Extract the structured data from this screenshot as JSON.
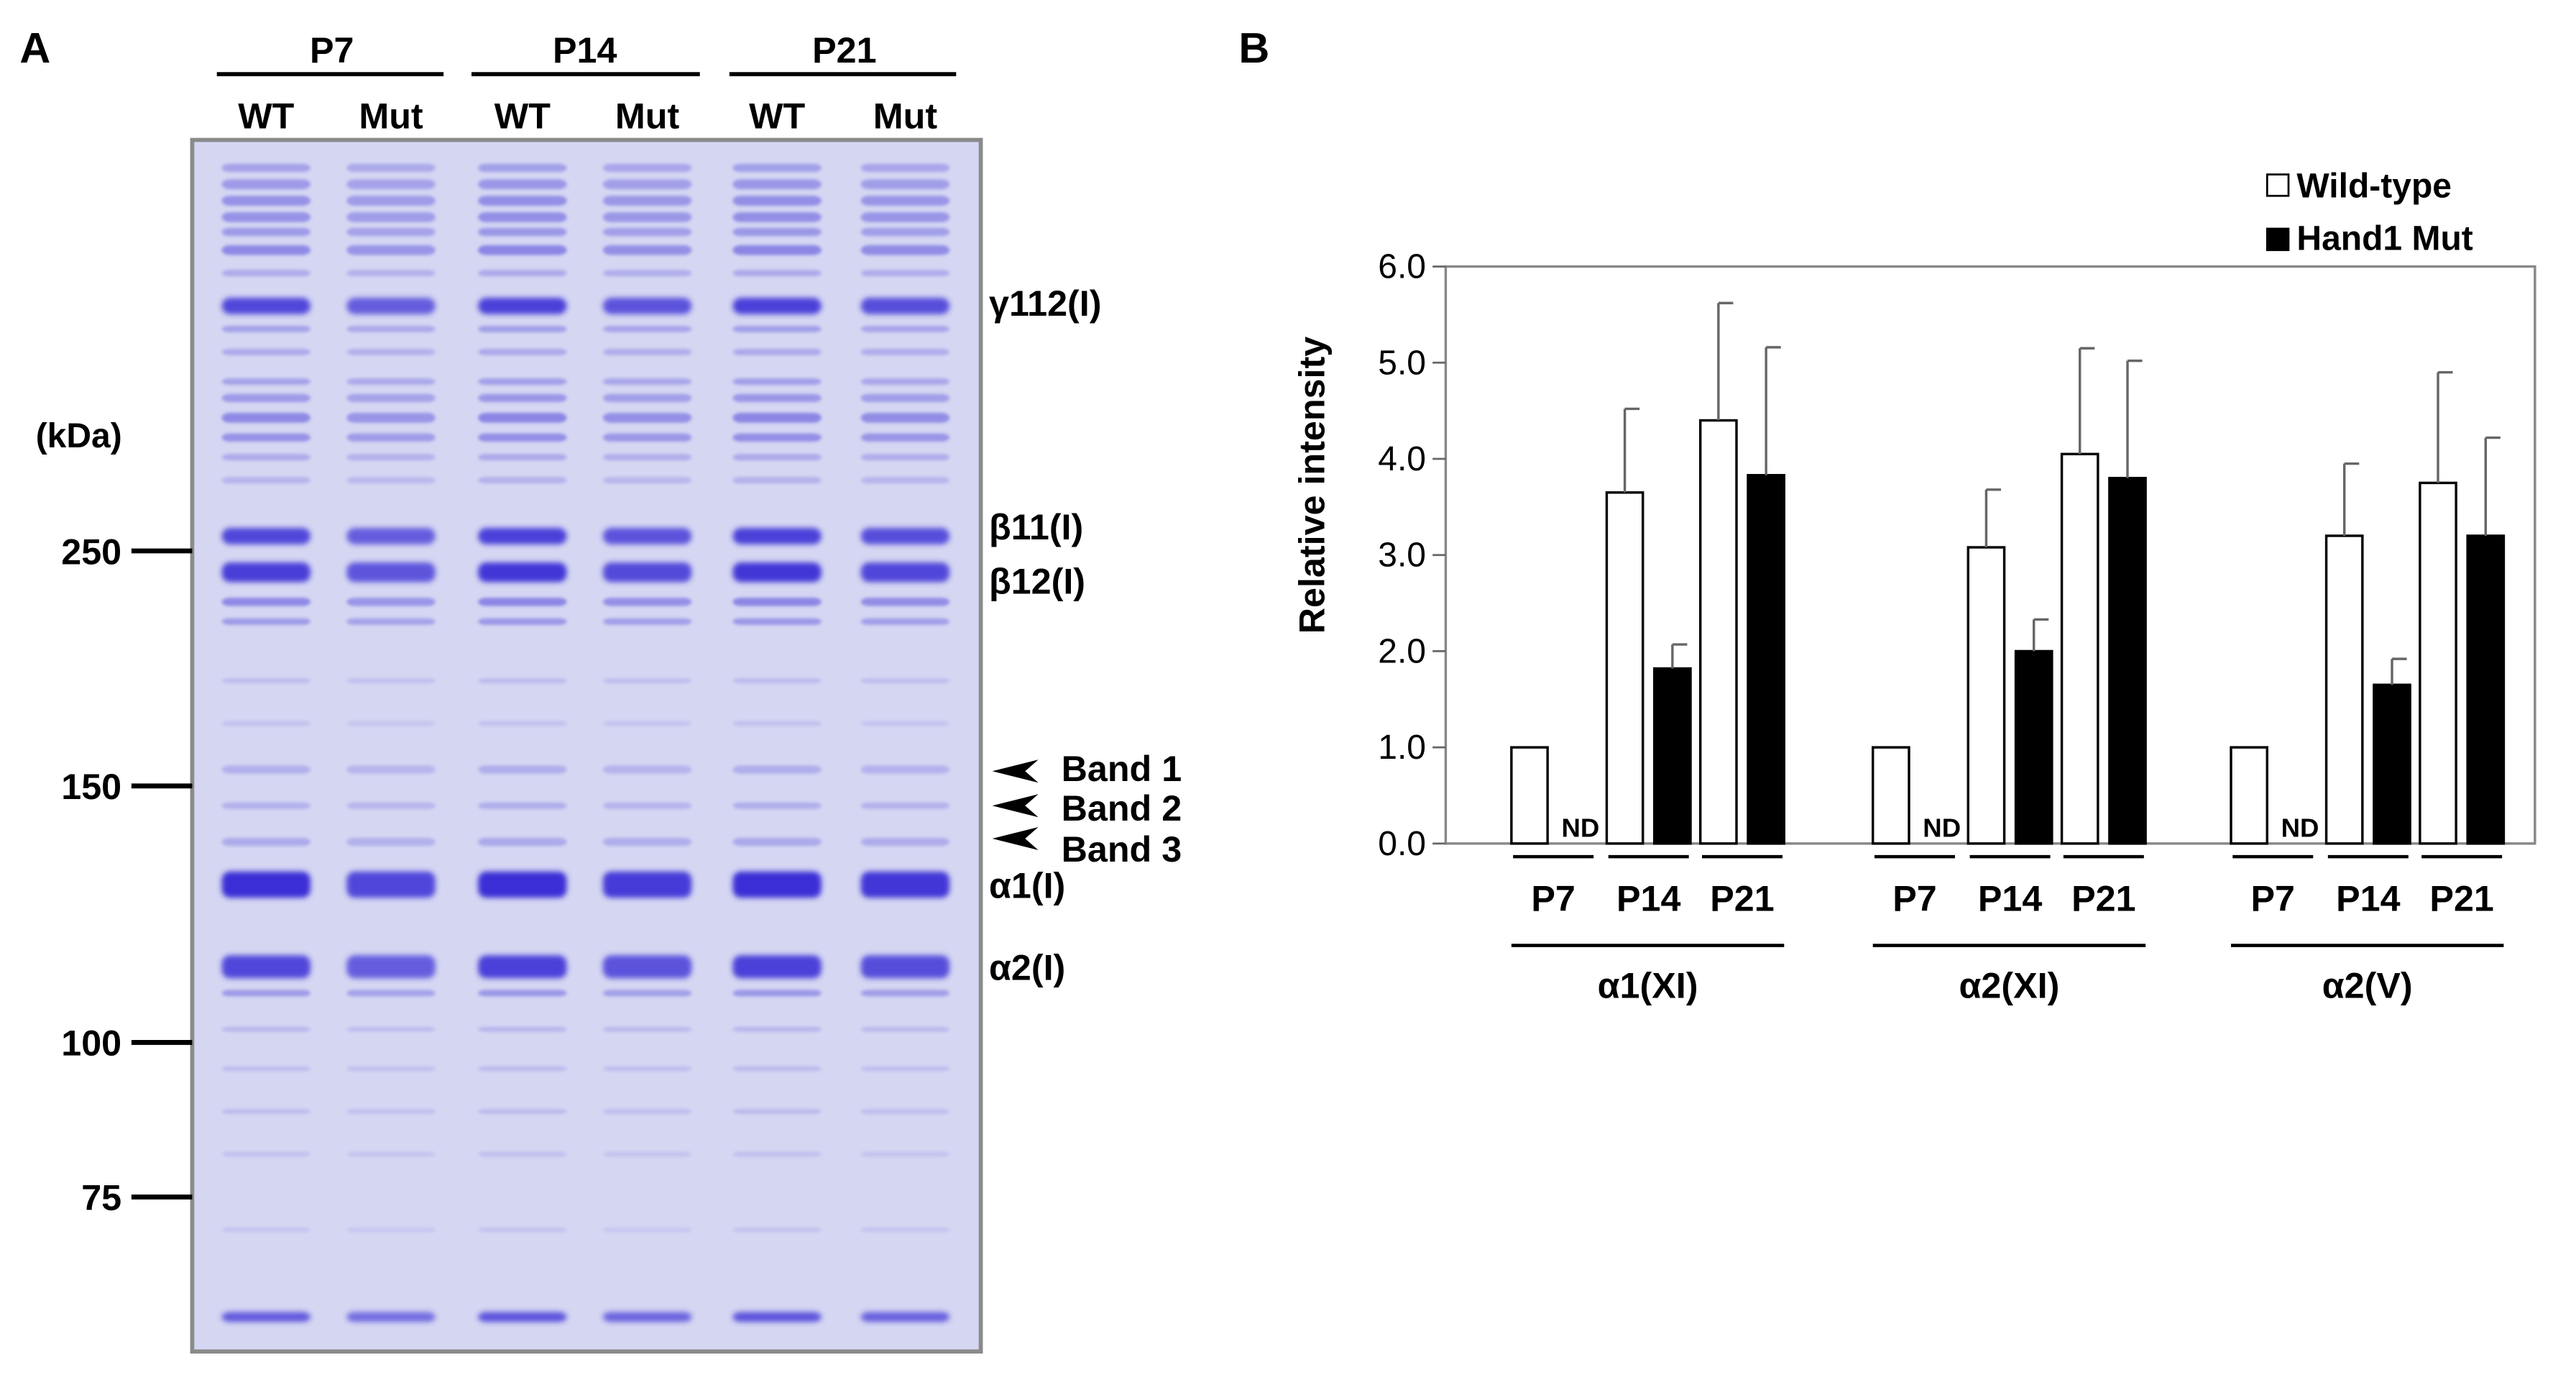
{
  "panel_a": {
    "letter": "A",
    "groups": [
      "P7",
      "P14",
      "P21"
    ],
    "lanes": [
      "WT",
      "Mut",
      "WT",
      "Mut",
      "WT",
      "Mut"
    ],
    "unit_label": "(kDa)",
    "markers": [
      "250",
      "150",
      "100",
      "75"
    ],
    "band_labels": {
      "g112": "γ112(I)",
      "b11": "β11(I)",
      "b12": "β12(I)",
      "band1": "Band 1",
      "band2": "Band 2",
      "band3": "Band 3",
      "a1": "α1(I)",
      "a2": "α2(I)"
    },
    "colors": {
      "gel_bg": "#d4d6f2",
      "band": "#3a2fd6",
      "frame": "#8a8a8a"
    }
  },
  "panel_b": {
    "letter": "B",
    "ylabel": "Relative intensity",
    "yticks": [
      "0.0",
      "1.0",
      "2.0",
      "3.0",
      "4.0",
      "5.0",
      "6.0"
    ],
    "legend": [
      {
        "label": "Wild-type",
        "fill": "#ffffff"
      },
      {
        "label": "Hand1 Mut",
        "fill": "#000000"
      }
    ],
    "nd_label": "ND",
    "time_labels": [
      "P7",
      "P14",
      "P21"
    ],
    "group_labels": [
      "α1(XI)",
      "α2(XI)",
      "α2(V)"
    ]
  },
  "chart_data": {
    "type": "bar",
    "categories": [
      "P7",
      "P14",
      "P21"
    ],
    "groups": [
      "α1(XI)",
      "α2(XI)",
      "α2(V)"
    ],
    "ylabel": "Relative intensity",
    "ylim": [
      0,
      6
    ],
    "grid": false,
    "legend_position": "top-right",
    "series": [
      {
        "name": "Wild-type",
        "values": [
          [
            1.0,
            3.65,
            4.4
          ],
          [
            1.0,
            3.08,
            4.05
          ],
          [
            1.0,
            3.2,
            3.75
          ]
        ],
        "errors": [
          [
            0,
            0.87,
            1.22
          ],
          [
            0,
            0.6,
            1.1
          ],
          [
            0,
            0.75,
            1.15
          ]
        ]
      },
      {
        "name": "Hand1 Mut",
        "values": [
          [
            null,
            1.82,
            3.83
          ],
          [
            null,
            2.0,
            3.8
          ],
          [
            null,
            1.65,
            3.2
          ]
        ],
        "errors": [
          [
            0,
            0.25,
            1.33
          ],
          [
            0,
            0.33,
            1.22
          ],
          [
            0,
            0.27,
            1.02
          ]
        ]
      }
    ]
  }
}
